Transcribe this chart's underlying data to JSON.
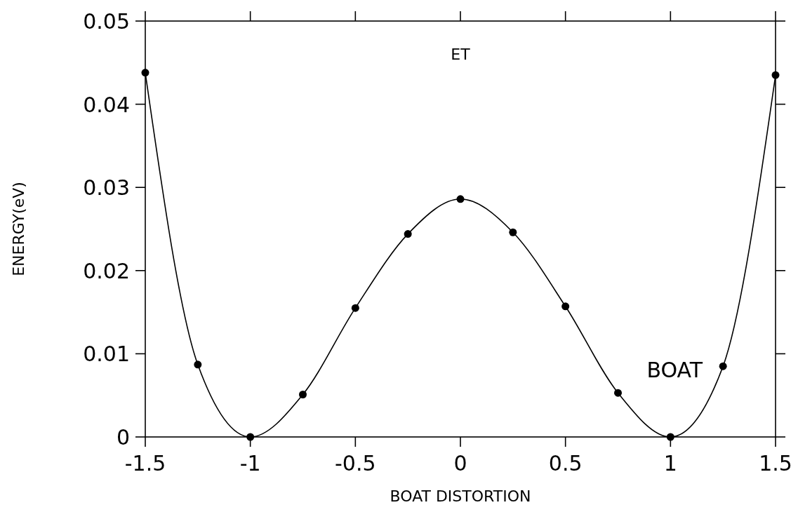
{
  "chart_data": {
    "type": "line",
    "xlabel": "BOAT DISTORTION",
    "ylabel": "ENERGY(eV)",
    "x": [
      -1.5,
      -1.25,
      -1,
      -0.75,
      -0.5,
      -0.25,
      0,
      0.25,
      0.5,
      0.75,
      1,
      1.25,
      1.5
    ],
    "series": [
      {
        "color": "#000000",
        "values": [
          0.0438,
          0.0087,
          0,
          0.0051,
          0.0155,
          0.0244,
          0.0286,
          0.0246,
          0.0157,
          0.0053,
          0,
          0.0085,
          0.0435
        ]
      }
    ],
    "xlim": [
      -1.5,
      1.5
    ],
    "xticks": [
      -1.5,
      -1,
      -0.5,
      0,
      0.5,
      1,
      1.5
    ],
    "ylim": [
      0,
      0.05
    ],
    "yticks": [
      0,
      0.01,
      0.02,
      0.03,
      0.04,
      0.05
    ],
    "marker": "circle",
    "line_style": "solid",
    "grid": false,
    "annotations": [
      "ET",
      "BOAT"
    ]
  }
}
